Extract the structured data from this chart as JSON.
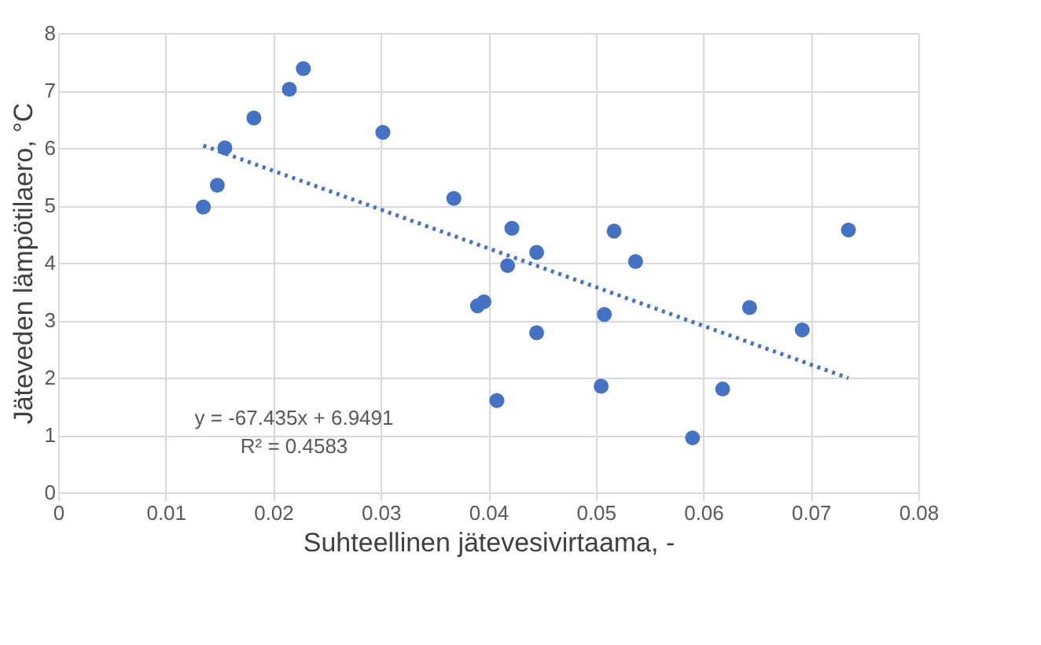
{
  "chart_data": {
    "type": "scatter",
    "xlabel": "Suhteellinen jätevesivirtaama, -",
    "ylabel": "Jäteveden lämpötilaero, °C",
    "xlim": [
      0,
      0.08
    ],
    "xticks": [
      0,
      0.01,
      0.02,
      0.03,
      0.04,
      0.05,
      0.06,
      0.07,
      0.08
    ],
    "ylim": [
      0,
      8
    ],
    "yticks": [
      0,
      1,
      2,
      3,
      4,
      5,
      6,
      7,
      8
    ],
    "grid": true,
    "annotations": [
      "y = -67.435x + 6.9491",
      "R² = 0.4583"
    ],
    "series": [
      {
        "color": "#4472c4",
        "marker": "circle",
        "x": [
          0.0135,
          0.0148,
          0.0155,
          0.0182,
          0.0215,
          0.0228,
          0.0302,
          0.0368,
          0.0418,
          0.0422,
          0.039,
          0.0396,
          0.0408,
          0.0445,
          0.0445,
          0.0505,
          0.0508,
          0.0517,
          0.0537,
          0.059,
          0.0618,
          0.0643,
          0.0692,
          0.0735
        ],
        "values": [
          4.97,
          5.35,
          6.0,
          6.52,
          7.02,
          7.38,
          6.27,
          5.12,
          3.95,
          4.6,
          3.25,
          3.32,
          1.6,
          4.18,
          2.78,
          1.85,
          3.1,
          4.55,
          4.02,
          0.95,
          1.8,
          3.22,
          2.83,
          4.57
        ]
      },
      {
        "type": "line",
        "color": "#4472c4",
        "line_style": "dotted",
        "x": [
          0.0135,
          0.0735
        ],
        "values": [
          6.04,
          1.99
        ]
      }
    ]
  }
}
